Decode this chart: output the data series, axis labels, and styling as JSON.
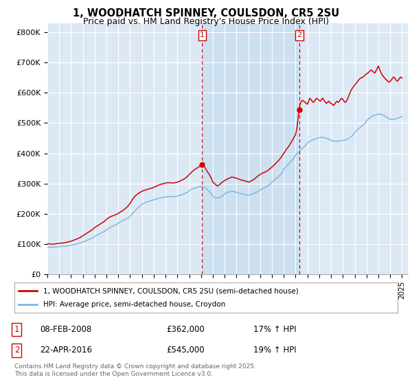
{
  "title_line1": "1, WOODHATCH SPINNEY, COULSDON, CR5 2SU",
  "title_line2": "Price paid vs. HM Land Registry's House Price Index (HPI)",
  "title_fontsize": 10.5,
  "subtitle_fontsize": 9,
  "ylabel_ticks": [
    "£0",
    "£100K",
    "£200K",
    "£300K",
    "£400K",
    "£500K",
    "£600K",
    "£700K",
    "£800K"
  ],
  "ytick_values": [
    0,
    100000,
    200000,
    300000,
    400000,
    500000,
    600000,
    700000,
    800000
  ],
  "ylim": [
    0,
    830000
  ],
  "xlim_start": 1995.0,
  "xlim_end": 2025.5,
  "xtick_years": [
    1995,
    1996,
    1997,
    1998,
    1999,
    2000,
    2001,
    2002,
    2003,
    2004,
    2005,
    2006,
    2007,
    2008,
    2009,
    2010,
    2011,
    2012,
    2013,
    2014,
    2015,
    2016,
    2017,
    2018,
    2019,
    2020,
    2021,
    2022,
    2023,
    2024,
    2025
  ],
  "background_color": "#ffffff",
  "plot_bg_color": "#dce9f5",
  "grid_color": "#ffffff",
  "red_line_color": "#cc0000",
  "blue_line_color": "#7eb8e0",
  "shade_color": "#cce0f0",
  "vline_color": "#cc0000",
  "vline_style": "--",
  "sale1_x": 2008.1,
  "sale1_y": 362000,
  "sale1_label": "1",
  "sale2_x": 2016.3,
  "sale2_y": 545000,
  "sale2_label": "2",
  "legend_line1": "1, WOODHATCH SPINNEY, COULSDON, CR5 2SU (semi-detached house)",
  "legend_line2": "HPI: Average price, semi-detached house, Croydon",
  "table_row1": [
    "1",
    "08-FEB-2008",
    "£362,000",
    "17% ↑ HPI"
  ],
  "table_row2": [
    "2",
    "22-APR-2016",
    "£545,000",
    "19% ↑ HPI"
  ],
  "footer": "Contains HM Land Registry data © Crown copyright and database right 2025.\nThis data is licensed under the Open Government Licence v3.0.",
  "hpi_red": [
    [
      1995.0,
      102000
    ],
    [
      1995.2,
      101000
    ],
    [
      1995.4,
      100500
    ],
    [
      1995.6,
      101000
    ],
    [
      1995.8,
      102000
    ],
    [
      1996.0,
      103000
    ],
    [
      1996.2,
      104000
    ],
    [
      1996.4,
      105000
    ],
    [
      1996.6,
      106000
    ],
    [
      1996.8,
      108000
    ],
    [
      1997.0,
      110000
    ],
    [
      1997.2,
      113000
    ],
    [
      1997.4,
      116000
    ],
    [
      1997.6,
      119000
    ],
    [
      1997.8,
      123000
    ],
    [
      1998.0,
      128000
    ],
    [
      1998.2,
      133000
    ],
    [
      1998.4,
      138000
    ],
    [
      1998.6,
      143000
    ],
    [
      1998.8,
      148000
    ],
    [
      1999.0,
      155000
    ],
    [
      1999.2,
      160000
    ],
    [
      1999.4,
      165000
    ],
    [
      1999.6,
      170000
    ],
    [
      1999.8,
      175000
    ],
    [
      2000.0,
      182000
    ],
    [
      2000.2,
      188000
    ],
    [
      2000.4,
      192000
    ],
    [
      2000.6,
      195000
    ],
    [
      2000.8,
      198000
    ],
    [
      2001.0,
      202000
    ],
    [
      2001.2,
      207000
    ],
    [
      2001.4,
      212000
    ],
    [
      2001.6,
      218000
    ],
    [
      2001.8,
      225000
    ],
    [
      2002.0,
      235000
    ],
    [
      2002.2,
      248000
    ],
    [
      2002.4,
      258000
    ],
    [
      2002.6,
      265000
    ],
    [
      2002.8,
      270000
    ],
    [
      2003.0,
      275000
    ],
    [
      2003.2,
      278000
    ],
    [
      2003.4,
      280000
    ],
    [
      2003.6,
      283000
    ],
    [
      2003.8,
      285000
    ],
    [
      2004.0,
      288000
    ],
    [
      2004.2,
      291000
    ],
    [
      2004.4,
      295000
    ],
    [
      2004.6,
      298000
    ],
    [
      2004.8,
      300000
    ],
    [
      2005.0,
      302000
    ],
    [
      2005.2,
      303000
    ],
    [
      2005.4,
      303000
    ],
    [
      2005.6,
      302000
    ],
    [
      2005.8,
      303000
    ],
    [
      2006.0,
      305000
    ],
    [
      2006.2,
      308000
    ],
    [
      2006.4,
      312000
    ],
    [
      2006.6,
      316000
    ],
    [
      2006.8,
      322000
    ],
    [
      2007.0,
      330000
    ],
    [
      2007.2,
      338000
    ],
    [
      2007.4,
      345000
    ],
    [
      2007.6,
      350000
    ],
    [
      2007.8,
      355000
    ],
    [
      2008.0,
      358000
    ],
    [
      2008.1,
      362000
    ],
    [
      2008.3,
      355000
    ],
    [
      2008.5,
      342000
    ],
    [
      2008.7,
      330000
    ],
    [
      2008.9,
      315000
    ],
    [
      2009.0,
      305000
    ],
    [
      2009.2,
      298000
    ],
    [
      2009.4,
      292000
    ],
    [
      2009.6,
      298000
    ],
    [
      2009.8,
      305000
    ],
    [
      2010.0,
      310000
    ],
    [
      2010.2,
      315000
    ],
    [
      2010.4,
      318000
    ],
    [
      2010.6,
      322000
    ],
    [
      2010.8,
      320000
    ],
    [
      2011.0,
      318000
    ],
    [
      2011.2,
      315000
    ],
    [
      2011.4,
      312000
    ],
    [
      2011.6,
      310000
    ],
    [
      2011.8,
      308000
    ],
    [
      2012.0,
      305000
    ],
    [
      2012.2,
      308000
    ],
    [
      2012.4,
      312000
    ],
    [
      2012.6,
      318000
    ],
    [
      2012.8,
      325000
    ],
    [
      2013.0,
      330000
    ],
    [
      2013.2,
      335000
    ],
    [
      2013.4,
      338000
    ],
    [
      2013.6,
      342000
    ],
    [
      2013.8,
      348000
    ],
    [
      2014.0,
      355000
    ],
    [
      2014.2,
      362000
    ],
    [
      2014.4,
      370000
    ],
    [
      2014.6,
      378000
    ],
    [
      2014.8,
      388000
    ],
    [
      2015.0,
      400000
    ],
    [
      2015.2,
      412000
    ],
    [
      2015.4,
      422000
    ],
    [
      2015.6,
      435000
    ],
    [
      2015.8,
      448000
    ],
    [
      2016.0,
      462000
    ],
    [
      2016.1,
      480000
    ],
    [
      2016.3,
      545000
    ],
    [
      2016.4,
      565000
    ],
    [
      2016.5,
      572000
    ],
    [
      2016.6,
      575000
    ],
    [
      2016.7,
      572000
    ],
    [
      2016.8,
      568000
    ],
    [
      2016.9,
      565000
    ],
    [
      2017.0,
      562000
    ],
    [
      2017.1,
      572000
    ],
    [
      2017.2,
      582000
    ],
    [
      2017.3,
      578000
    ],
    [
      2017.4,
      572000
    ],
    [
      2017.5,
      568000
    ],
    [
      2017.6,
      572000
    ],
    [
      2017.7,
      578000
    ],
    [
      2017.8,
      582000
    ],
    [
      2017.9,
      578000
    ],
    [
      2018.0,
      575000
    ],
    [
      2018.1,
      572000
    ],
    [
      2018.2,
      578000
    ],
    [
      2018.3,
      582000
    ],
    [
      2018.4,
      575000
    ],
    [
      2018.5,
      570000
    ],
    [
      2018.6,
      565000
    ],
    [
      2018.7,
      568000
    ],
    [
      2018.8,
      572000
    ],
    [
      2018.9,
      568000
    ],
    [
      2019.0,
      565000
    ],
    [
      2019.1,
      562000
    ],
    [
      2019.2,
      558000
    ],
    [
      2019.3,
      562000
    ],
    [
      2019.4,
      568000
    ],
    [
      2019.5,
      572000
    ],
    [
      2019.6,
      568000
    ],
    [
      2019.7,
      572000
    ],
    [
      2019.8,
      578000
    ],
    [
      2019.9,
      582000
    ],
    [
      2020.0,
      578000
    ],
    [
      2020.1,
      572000
    ],
    [
      2020.2,
      568000
    ],
    [
      2020.3,
      572000
    ],
    [
      2020.4,
      580000
    ],
    [
      2020.5,
      590000
    ],
    [
      2020.6,
      600000
    ],
    [
      2020.7,
      608000
    ],
    [
      2020.8,
      615000
    ],
    [
      2020.9,
      620000
    ],
    [
      2021.0,
      625000
    ],
    [
      2021.1,
      630000
    ],
    [
      2021.2,
      635000
    ],
    [
      2021.3,
      640000
    ],
    [
      2021.4,
      645000
    ],
    [
      2021.5,
      648000
    ],
    [
      2021.6,
      650000
    ],
    [
      2021.7,
      652000
    ],
    [
      2021.8,
      655000
    ],
    [
      2021.9,
      660000
    ],
    [
      2022.0,
      662000
    ],
    [
      2022.1,
      665000
    ],
    [
      2022.2,
      668000
    ],
    [
      2022.3,
      672000
    ],
    [
      2022.4,
      675000
    ],
    [
      2022.5,
      672000
    ],
    [
      2022.6,
      668000
    ],
    [
      2022.7,
      665000
    ],
    [
      2022.8,
      672000
    ],
    [
      2022.9,
      680000
    ],
    [
      2023.0,
      688000
    ],
    [
      2023.1,
      678000
    ],
    [
      2023.2,
      668000
    ],
    [
      2023.3,
      660000
    ],
    [
      2023.4,
      655000
    ],
    [
      2023.5,
      650000
    ],
    [
      2023.6,
      645000
    ],
    [
      2023.7,
      642000
    ],
    [
      2023.8,
      638000
    ],
    [
      2023.9,
      635000
    ],
    [
      2024.0,
      638000
    ],
    [
      2024.1,
      642000
    ],
    [
      2024.2,
      648000
    ],
    [
      2024.3,
      652000
    ],
    [
      2024.4,
      648000
    ],
    [
      2024.5,
      642000
    ],
    [
      2024.6,
      638000
    ],
    [
      2024.7,
      642000
    ],
    [
      2024.8,
      648000
    ],
    [
      2024.9,
      652000
    ],
    [
      2025.0,
      648000
    ]
  ],
  "hpi_blue": [
    [
      1995.0,
      90000
    ],
    [
      1995.3,
      90500
    ],
    [
      1995.6,
      91000
    ],
    [
      1995.9,
      91500
    ],
    [
      1996.0,
      92000
    ],
    [
      1996.3,
      93000
    ],
    [
      1996.6,
      94500
    ],
    [
      1996.9,
      96000
    ],
    [
      1997.0,
      97000
    ],
    [
      1997.3,
      99000
    ],
    [
      1997.6,
      102000
    ],
    [
      1997.9,
      106000
    ],
    [
      1998.0,
      108000
    ],
    [
      1998.3,
      112000
    ],
    [
      1998.6,
      117000
    ],
    [
      1998.9,
      123000
    ],
    [
      1999.0,
      126000
    ],
    [
      1999.3,
      132000
    ],
    [
      1999.6,
      138000
    ],
    [
      1999.9,
      144000
    ],
    [
      2000.0,
      148000
    ],
    [
      2000.3,
      155000
    ],
    [
      2000.6,
      161000
    ],
    [
      2000.9,
      166000
    ],
    [
      2001.0,
      170000
    ],
    [
      2001.3,
      176000
    ],
    [
      2001.6,
      182000
    ],
    [
      2001.9,
      188000
    ],
    [
      2002.0,
      193000
    ],
    [
      2002.3,
      205000
    ],
    [
      2002.6,
      218000
    ],
    [
      2002.9,
      228000
    ],
    [
      2003.0,
      233000
    ],
    [
      2003.3,
      238000
    ],
    [
      2003.6,
      242000
    ],
    [
      2003.9,
      245000
    ],
    [
      2004.0,
      247000
    ],
    [
      2004.3,
      250000
    ],
    [
      2004.6,
      253000
    ],
    [
      2004.9,
      255000
    ],
    [
      2005.0,
      256000
    ],
    [
      2005.3,
      257000
    ],
    [
      2005.6,
      257000
    ],
    [
      2005.9,
      258000
    ],
    [
      2006.0,
      259000
    ],
    [
      2006.3,
      262000
    ],
    [
      2006.6,
      267000
    ],
    [
      2006.9,
      273000
    ],
    [
      2007.0,
      277000
    ],
    [
      2007.3,
      283000
    ],
    [
      2007.6,
      287000
    ],
    [
      2007.9,
      290000
    ],
    [
      2008.0,
      291000
    ],
    [
      2008.3,
      288000
    ],
    [
      2008.6,
      278000
    ],
    [
      2008.9,
      265000
    ],
    [
      2009.0,
      258000
    ],
    [
      2009.3,
      252000
    ],
    [
      2009.6,
      255000
    ],
    [
      2009.9,
      262000
    ],
    [
      2010.0,
      267000
    ],
    [
      2010.3,
      272000
    ],
    [
      2010.6,
      275000
    ],
    [
      2010.9,
      273000
    ],
    [
      2011.0,
      271000
    ],
    [
      2011.3,
      268000
    ],
    [
      2011.6,
      265000
    ],
    [
      2011.9,
      263000
    ],
    [
      2012.0,
      262000
    ],
    [
      2012.3,
      265000
    ],
    [
      2012.6,
      270000
    ],
    [
      2012.9,
      276000
    ],
    [
      2013.0,
      280000
    ],
    [
      2013.3,
      285000
    ],
    [
      2013.6,
      292000
    ],
    [
      2013.9,
      300000
    ],
    [
      2014.0,
      306000
    ],
    [
      2014.3,
      315000
    ],
    [
      2014.6,
      325000
    ],
    [
      2014.9,
      338000
    ],
    [
      2015.0,
      348000
    ],
    [
      2015.3,
      360000
    ],
    [
      2015.6,
      373000
    ],
    [
      2015.9,
      386000
    ],
    [
      2016.0,
      395000
    ],
    [
      2016.3,
      405000
    ],
    [
      2016.6,
      418000
    ],
    [
      2016.9,
      428000
    ],
    [
      2017.0,
      435000
    ],
    [
      2017.3,
      442000
    ],
    [
      2017.6,
      447000
    ],
    [
      2017.9,
      450000
    ],
    [
      2018.0,
      452000
    ],
    [
      2018.3,
      453000
    ],
    [
      2018.6,
      450000
    ],
    [
      2018.9,
      445000
    ],
    [
      2019.0,
      442000
    ],
    [
      2019.3,
      440000
    ],
    [
      2019.6,
      440000
    ],
    [
      2019.9,
      442000
    ],
    [
      2020.0,
      443000
    ],
    [
      2020.3,
      445000
    ],
    [
      2020.6,
      452000
    ],
    [
      2020.9,
      462000
    ],
    [
      2021.0,
      470000
    ],
    [
      2021.3,
      480000
    ],
    [
      2021.6,
      490000
    ],
    [
      2021.9,
      500000
    ],
    [
      2022.0,
      508000
    ],
    [
      2022.3,
      518000
    ],
    [
      2022.6,
      525000
    ],
    [
      2022.9,
      528000
    ],
    [
      2023.0,
      530000
    ],
    [
      2023.3,
      528000
    ],
    [
      2023.6,
      522000
    ],
    [
      2023.9,
      515000
    ],
    [
      2024.0,
      512000
    ],
    [
      2024.3,
      512000
    ],
    [
      2024.6,
      515000
    ],
    [
      2024.9,
      520000
    ],
    [
      2025.0,
      522000
    ]
  ]
}
